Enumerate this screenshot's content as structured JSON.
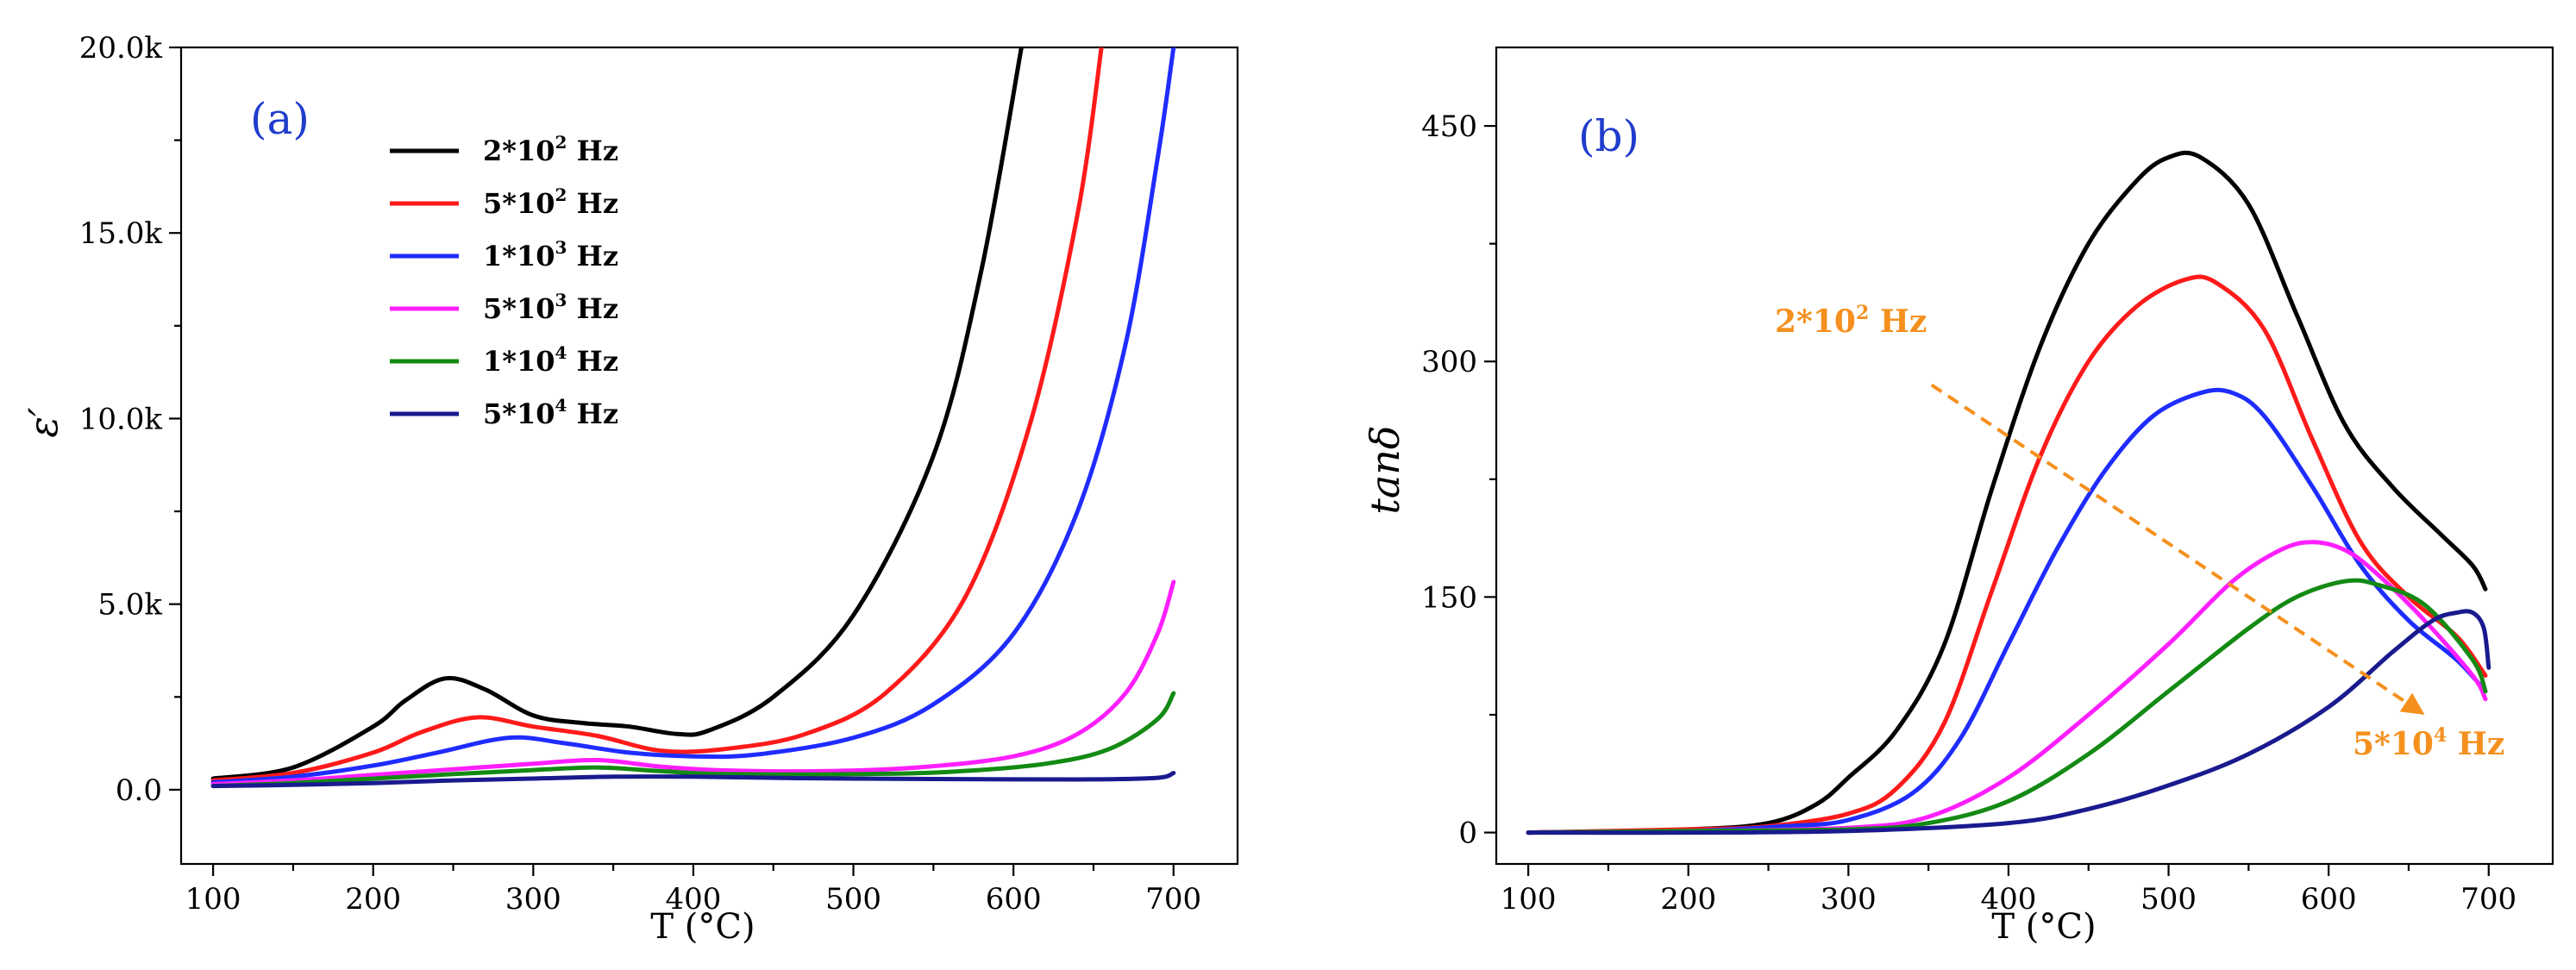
{
  "chart_data": [
    {
      "panel": "a",
      "type": "line",
      "panel_label": "(a)",
      "xlabel": "T (°C)",
      "ylabel": "ε′",
      "xlim": [
        80,
        740
      ],
      "ylim": [
        -2000,
        20000
      ],
      "xticks": [
        100,
        200,
        300,
        400,
        500,
        600,
        700
      ],
      "yticks": [
        0,
        5000,
        10000,
        15000,
        20000
      ],
      "ytick_labels": [
        "0.0",
        "5.0k",
        "10.0k",
        "15.0k",
        "20.0k"
      ],
      "legend": {
        "placement": "top-left",
        "entries": [
          {
            "base": "2*10",
            "exp": "2",
            "unit": " Hz"
          },
          {
            "base": "5*10",
            "exp": "2",
            "unit": " Hz"
          },
          {
            "base": "1*10",
            "exp": "3",
            "unit": " Hz"
          },
          {
            "base": "5*10",
            "exp": "3",
            "unit": " Hz"
          },
          {
            "base": "1*10",
            "exp": "4",
            "unit": " Hz"
          },
          {
            "base": "5*10",
            "exp": "4",
            "unit": " Hz"
          }
        ]
      },
      "series": [
        {
          "name": "2*10^2 Hz",
          "color": "#000000",
          "x": [
            100,
            150,
            200,
            220,
            245,
            270,
            300,
            330,
            360,
            390,
            410,
            450,
            500,
            550,
            580,
            605
          ],
          "y": [
            300,
            600,
            1700,
            2400,
            3000,
            2700,
            2000,
            1800,
            1700,
            1500,
            1600,
            2500,
            4700,
            9000,
            14000,
            20000
          ]
        },
        {
          "name": "5*10^2 Hz",
          "color": "#ff1a1a",
          "x": [
            100,
            150,
            200,
            230,
            265,
            300,
            340,
            380,
            420,
            470,
            520,
            570,
            610,
            640,
            655
          ],
          "y": [
            250,
            450,
            1000,
            1550,
            1950,
            1700,
            1450,
            1050,
            1100,
            1500,
            2600,
            5200,
            9800,
            15500,
            20000
          ]
        },
        {
          "name": "1*10^3 Hz",
          "color": "#1f2cff",
          "x": [
            100,
            150,
            200,
            240,
            285,
            320,
            360,
            400,
            440,
            500,
            550,
            600,
            640,
            670,
            690,
            700
          ],
          "y": [
            200,
            350,
            650,
            1000,
            1400,
            1250,
            1000,
            900,
            950,
            1400,
            2300,
            4200,
            7500,
            12000,
            17000,
            20000
          ]
        },
        {
          "name": "5*10^3 Hz",
          "color": "#ff1fff",
          "x": [
            100,
            150,
            200,
            250,
            300,
            340,
            380,
            420,
            480,
            540,
            600,
            640,
            670,
            690,
            700
          ],
          "y": [
            150,
            250,
            400,
            550,
            700,
            800,
            620,
            520,
            500,
            600,
            900,
            1500,
            2600,
            4200,
            5600
          ]
        },
        {
          "name": "1*10^4 Hz",
          "color": "#138a13",
          "x": [
            100,
            150,
            200,
            250,
            300,
            340,
            380,
            420,
            500,
            560,
            620,
            660,
            690,
            700
          ],
          "y": [
            100,
            180,
            300,
            420,
            530,
            600,
            500,
            420,
            420,
            480,
            700,
            1100,
            1900,
            2600
          ]
        },
        {
          "name": "5*10^4 Hz",
          "color": "#1a1a8f",
          "x": [
            100,
            150,
            200,
            250,
            300,
            350,
            400,
            450,
            500,
            600,
            650,
            690,
            700
          ],
          "y": [
            100,
            130,
            180,
            250,
            300,
            350,
            350,
            320,
            300,
            280,
            280,
            320,
            450
          ]
        }
      ]
    },
    {
      "panel": "b",
      "type": "line",
      "panel_label": "(b)",
      "xlabel": "T (°C)",
      "ylabel": "tanδ",
      "xlim": [
        80,
        740
      ],
      "ylim": [
        -20,
        500
      ],
      "xticks": [
        100,
        200,
        300,
        400,
        500,
        600,
        700
      ],
      "yticks": [
        0,
        150,
        300,
        450
      ],
      "annotations": [
        {
          "base": "2*10",
          "exp": "2",
          "unit": " Hz",
          "at": "upper start of arrow"
        },
        {
          "base": "5*10",
          "exp": "4",
          "unit": " Hz",
          "at": "lower end of arrow"
        }
      ],
      "arrow": {
        "from": [
          352,
          285
        ],
        "to": [
          660,
          75
        ],
        "color": "#f5901e",
        "style": "dashed"
      },
      "series": [
        {
          "name": "2*10^2 Hz",
          "color": "#000000",
          "x": [
            100,
            200,
            250,
            280,
            300,
            330,
            360,
            390,
            420,
            450,
            480,
            500,
            520,
            550,
            580,
            610,
            640,
            670,
            690,
            698
          ],
          "y": [
            0,
            2,
            6,
            18,
            35,
            65,
            120,
            220,
            310,
            375,
            415,
            430,
            430,
            400,
            330,
            260,
            220,
            190,
            170,
            155
          ]
        },
        {
          "name": "5*10^2 Hz",
          "color": "#ff1a1a",
          "x": [
            100,
            200,
            250,
            300,
            330,
            360,
            390,
            420,
            450,
            480,
            510,
            530,
            560,
            590,
            620,
            650,
            680,
            698
          ],
          "y": [
            0,
            2,
            4,
            12,
            28,
            70,
            155,
            240,
            300,
            335,
            352,
            350,
            320,
            250,
            185,
            150,
            125,
            100
          ]
        },
        {
          "name": "1*10^3 Hz",
          "color": "#1f2cff",
          "x": [
            100,
            200,
            260,
            300,
            340,
            370,
            400,
            430,
            460,
            490,
            520,
            540,
            560,
            590,
            620,
            650,
            680,
            698
          ],
          "y": [
            0,
            1,
            4,
            8,
            25,
            60,
            120,
            180,
            230,
            265,
            280,
            280,
            265,
            220,
            170,
            135,
            110,
            90
          ]
        },
        {
          "name": "5*10^3 Hz",
          "color": "#ff1fff",
          "x": [
            100,
            200,
            300,
            350,
            400,
            450,
            500,
            540,
            570,
            590,
            610,
            630,
            660,
            690,
            698
          ],
          "y": [
            0,
            1,
            3,
            10,
            35,
            75,
            120,
            160,
            180,
            185,
            180,
            165,
            135,
            100,
            85
          ]
        },
        {
          "name": "1*10^4 Hz",
          "color": "#138a13",
          "x": [
            100,
            200,
            300,
            350,
            400,
            450,
            500,
            550,
            580,
            610,
            630,
            660,
            690,
            698
          ],
          "y": [
            0,
            1,
            2,
            6,
            20,
            50,
            90,
            130,
            150,
            160,
            158,
            145,
            110,
            90
          ]
        },
        {
          "name": "5*10^4 Hz",
          "color": "#1a1a8f",
          "x": [
            100,
            200,
            300,
            400,
            450,
            500,
            550,
            600,
            640,
            665,
            680,
            690,
            697,
            700
          ],
          "y": [
            0,
            0,
            1,
            6,
            15,
            30,
            50,
            80,
            115,
            135,
            140,
            140,
            130,
            105
          ]
        }
      ]
    }
  ]
}
